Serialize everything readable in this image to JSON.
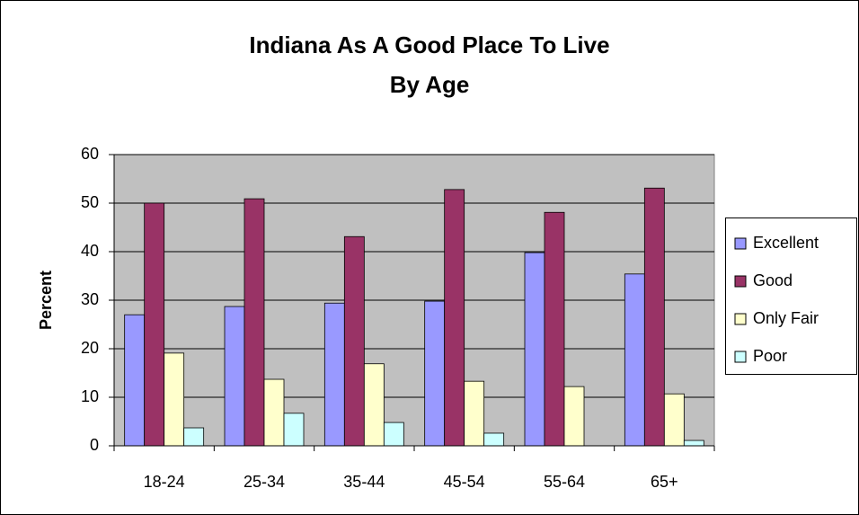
{
  "chart_data": {
    "type": "bar",
    "title": "Indiana As A Good Place To Live",
    "subtitle": "By Age",
    "y_label": "Percent",
    "categories": [
      "18-24",
      "25-34",
      "35-44",
      "45-54",
      "55-64",
      "65+"
    ],
    "series": [
      {
        "name": "Excellent",
        "color": "#9999ff",
        "values": [
          27.0,
          28.7,
          29.4,
          29.8,
          39.8,
          35.4
        ]
      },
      {
        "name": "Good",
        "color": "#993366",
        "values": [
          50.0,
          50.9,
          43.1,
          52.8,
          48.1,
          53.1
        ]
      },
      {
        "name": "Only Fair",
        "color": "#ffffcc",
        "values": [
          19.1,
          13.7,
          16.9,
          13.3,
          12.2,
          10.7
        ]
      },
      {
        "name": "Poor",
        "color": "#ccffff",
        "values": [
          3.7,
          6.7,
          4.8,
          2.6,
          0,
          1.1
        ]
      }
    ],
    "ylim": [
      0,
      60
    ],
    "yticks": [
      0,
      10,
      20,
      30,
      40,
      50,
      60
    ],
    "grid": true,
    "legend": "right"
  }
}
